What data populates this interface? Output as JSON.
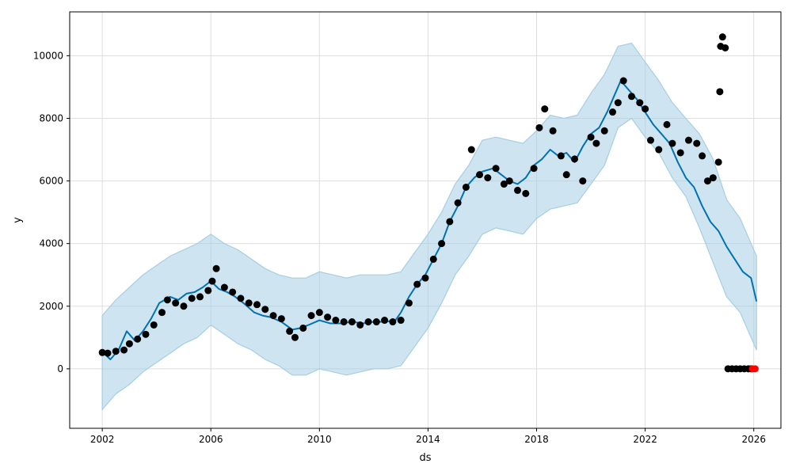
{
  "chart_data": {
    "type": "scatter",
    "title": "",
    "xlabel": "ds",
    "ylabel": "y",
    "xlim": [
      2000.8,
      2027.0
    ],
    "ylim": [
      -1900,
      11400
    ],
    "x_ticks": [
      2002,
      2006,
      2010,
      2014,
      2018,
      2022,
      2026
    ],
    "x_tick_labels": [
      "2002",
      "2006",
      "2010",
      "2014",
      "2018",
      "2022",
      "2026"
    ],
    "y_ticks": [
      0,
      2000,
      4000,
      6000,
      8000,
      10000
    ],
    "y_tick_labels": [
      "0",
      "2000",
      "4000",
      "6000",
      "8000",
      "10000"
    ],
    "grid": true,
    "legend": "none",
    "colors": {
      "forecast": "#0072b2",
      "interval": "#a6cee3",
      "observed": "#000000",
      "flagged": "#ff0000"
    },
    "series": [
      {
        "kind": "forecast-line",
        "x": [
          2002.0,
          2002.3,
          2002.6,
          2002.9,
          2003.2,
          2003.5,
          2003.8,
          2004.1,
          2004.5,
          2004.8,
          2005.1,
          2005.4,
          2005.7,
          2006.0,
          2006.3,
          2006.6,
          2006.9,
          2007.2,
          2007.6,
          2007.9,
          2008.2,
          2008.6,
          2009.0,
          2009.3,
          2009.6,
          2010.0,
          2010.4,
          2010.8,
          2011.2,
          2011.6,
          2012.0,
          2012.4,
          2012.8,
          2013.0,
          2013.3,
          2013.6,
          2013.9,
          2014.2,
          2014.5,
          2014.8,
          2015.1,
          2015.4,
          2015.7,
          2016.0,
          2016.4,
          2016.7,
          2017.0,
          2017.3,
          2017.6,
          2017.9,
          2018.2,
          2018.5,
          2018.8,
          2019.1,
          2019.4,
          2019.7,
          2020.0,
          2020.3,
          2020.6,
          2020.9,
          2021.1,
          2021.4,
          2021.7,
          2022.0,
          2022.3,
          2022.6,
          2022.9,
          2023.2,
          2023.5,
          2023.8,
          2024.1,
          2024.4,
          2024.7,
          2025.0,
          2025.3,
          2025.6,
          2025.9,
          2026.1
        ],
        "y": [
          550,
          300,
          600,
          1200,
          900,
          1200,
          1600,
          2100,
          2300,
          2200,
          2400,
          2450,
          2600,
          2800,
          2550,
          2450,
          2300,
          2100,
          1800,
          1700,
          1650,
          1500,
          1250,
          1300,
          1400,
          1550,
          1450,
          1450,
          1500,
          1450,
          1500,
          1500,
          1550,
          1800,
          2300,
          2700,
          3000,
          3500,
          4000,
          4700,
          5200,
          5800,
          6100,
          6300,
          6400,
          6200,
          6000,
          5900,
          6100,
          6500,
          6700,
          7000,
          6800,
          6900,
          6600,
          7100,
          7500,
          7700,
          8200,
          8800,
          9200,
          8900,
          8600,
          8200,
          7800,
          7500,
          7200,
          6600,
          6100,
          5800,
          5200,
          4700,
          4400,
          3900,
          3500,
          3100,
          2900,
          2150
        ]
      },
      {
        "kind": "uncertainty-interval",
        "x": [
          2002.0,
          2002.5,
          2003.0,
          2003.5,
          2004.0,
          2004.5,
          2005.0,
          2005.5,
          2006.0,
          2006.5,
          2007.0,
          2007.5,
          2008.0,
          2008.5,
          2009.0,
          2009.5,
          2010.0,
          2010.5,
          2011.0,
          2011.5,
          2012.0,
          2012.5,
          2013.0,
          2013.5,
          2014.0,
          2014.5,
          2015.0,
          2015.5,
          2016.0,
          2016.5,
          2017.0,
          2017.5,
          2018.0,
          2018.5,
          2019.0,
          2019.5,
          2020.0,
          2020.5,
          2021.0,
          2021.5,
          2022.0,
          2022.5,
          2023.0,
          2023.5,
          2024.0,
          2024.5,
          2025.0,
          2025.5,
          2026.1
        ],
        "upper": [
          1700,
          2200,
          2600,
          3000,
          3300,
          3600,
          3800,
          4000,
          4300,
          4000,
          3800,
          3500,
          3200,
          3000,
          2900,
          2900,
          3100,
          3000,
          2900,
          3000,
          3000,
          3000,
          3100,
          3700,
          4300,
          5000,
          5900,
          6500,
          7300,
          7400,
          7300,
          7200,
          7600,
          8100,
          8000,
          8100,
          8800,
          9400,
          10300,
          10400,
          9800,
          9200,
          8500,
          8000,
          7500,
          6700,
          5400,
          4800,
          3600
        ],
        "lower": [
          -1300,
          -800,
          -500,
          -100,
          200,
          500,
          800,
          1000,
          1400,
          1100,
          800,
          600,
          300,
          100,
          -200,
          -200,
          0,
          -100,
          -200,
          -100,
          0,
          0,
          100,
          700,
          1300,
          2100,
          3000,
          3600,
          4300,
          4500,
          4400,
          4300,
          4800,
          5100,
          5200,
          5300,
          5900,
          6500,
          7700,
          8000,
          7400,
          6900,
          6100,
          5500,
          4500,
          3400,
          2300,
          1800,
          600
        ]
      },
      {
        "kind": "observed-points",
        "x": [
          2002.0,
          2002.2,
          2002.5,
          2002.8,
          2003.0,
          2003.3,
          2003.6,
          2003.9,
          2004.2,
          2004.4,
          2004.7,
          2005.0,
          2005.3,
          2005.6,
          2005.9,
          2006.05,
          2006.2,
          2006.5,
          2006.8,
          2007.1,
          2007.4,
          2007.7,
          2008.0,
          2008.3,
          2008.6,
          2008.9,
          2009.1,
          2009.4,
          2009.7,
          2010.0,
          2010.3,
          2010.6,
          2010.9,
          2011.2,
          2011.5,
          2011.8,
          2012.1,
          2012.4,
          2012.7,
          2013.0,
          2013.3,
          2013.6,
          2013.9,
          2014.2,
          2014.5,
          2014.8,
          2015.1,
          2015.4,
          2015.6,
          2015.9,
          2016.2,
          2016.5,
          2016.8,
          2017.0,
          2017.3,
          2017.6,
          2017.9,
          2018.1,
          2018.3,
          2018.6,
          2018.9,
          2019.1,
          2019.4,
          2019.7,
          2020.0,
          2020.2,
          2020.5,
          2020.8,
          2021.0,
          2021.2,
          2021.5,
          2021.8,
          2022.0,
          2022.2,
          2022.5,
          2022.8,
          2023.0,
          2023.3,
          2023.6,
          2023.9,
          2024.1,
          2024.3,
          2024.5,
          2024.7,
          2024.75,
          2024.78,
          2024.85,
          2024.95
        ],
        "y": [
          520,
          500,
          560,
          600,
          800,
          950,
          1100,
          1400,
          1800,
          2200,
          2100,
          2000,
          2250,
          2300,
          2500,
          2800,
          3200,
          2600,
          2450,
          2250,
          2100,
          2050,
          1900,
          1700,
          1600,
          1200,
          1000,
          1300,
          1700,
          1800,
          1650,
          1550,
          1500,
          1500,
          1400,
          1500,
          1500,
          1550,
          1500,
          1550,
          2100,
          2700,
          2900,
          3500,
          4000,
          4700,
          5300,
          5800,
          7000,
          6200,
          6100,
          6400,
          5900,
          6000,
          5700,
          5600,
          6400,
          7700,
          8300,
          7600,
          6800,
          6200,
          6700,
          6000,
          7400,
          7200,
          7600,
          8200,
          8500,
          9200,
          8700,
          8500,
          8300,
          7300,
          7000,
          7800,
          7200,
          6900,
          7300,
          7200,
          6800,
          6000,
          6100,
          6600,
          8850,
          10300,
          10600,
          10250
        ]
      },
      {
        "kind": "zero-value-points",
        "x": [
          2025.05,
          2025.2,
          2025.35,
          2025.5,
          2025.65,
          2025.8,
          2025.9
        ],
        "y": [
          0,
          0,
          0,
          0,
          0,
          0,
          0
        ]
      },
      {
        "kind": "flagged-points",
        "x": [
          2025.95,
          2026.05
        ],
        "y": [
          0,
          0
        ]
      }
    ]
  }
}
